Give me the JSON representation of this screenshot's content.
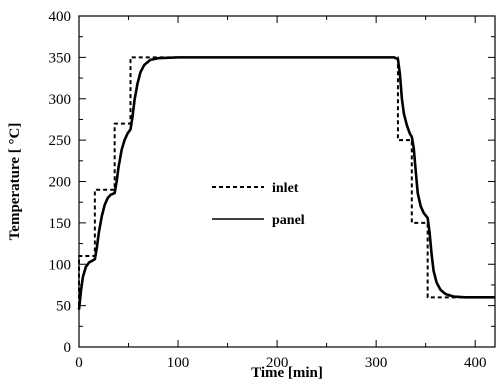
{
  "chart_data": {
    "type": "line",
    "xlabel": "Time [min]",
    "ylabel": "Temperature [   °C]",
    "xlim": [
      0,
      420
    ],
    "ylim": [
      0,
      400
    ],
    "xticks": [
      0,
      100,
      200,
      300,
      400
    ],
    "yticks": [
      0,
      50,
      100,
      150,
      200,
      250,
      300,
      350,
      400
    ],
    "grid": false,
    "legend_position": "center-left",
    "series": [
      {
        "name": "inlet",
        "style": "dashed",
        "points": [
          [
            0,
            50
          ],
          [
            0,
            110
          ],
          [
            16,
            110
          ],
          [
            16,
            190
          ],
          [
            36,
            190
          ],
          [
            36,
            270
          ],
          [
            52,
            270
          ],
          [
            52,
            350
          ],
          [
            322,
            350
          ],
          [
            322,
            250
          ],
          [
            336,
            250
          ],
          [
            336,
            150
          ],
          [
            352,
            150
          ],
          [
            352,
            60
          ],
          [
            420,
            60
          ]
        ]
      },
      {
        "name": "panel",
        "style": "solid",
        "points": [
          [
            0,
            45
          ],
          [
            2,
            68
          ],
          [
            4,
            85
          ],
          [
            7,
            97
          ],
          [
            10,
            102
          ],
          [
            13,
            104
          ],
          [
            16,
            106
          ],
          [
            18,
            120
          ],
          [
            20,
            138
          ],
          [
            23,
            158
          ],
          [
            26,
            172
          ],
          [
            29,
            180
          ],
          [
            32,
            184
          ],
          [
            36,
            186
          ],
          [
            38,
            200
          ],
          [
            40,
            218
          ],
          [
            43,
            238
          ],
          [
            46,
            250
          ],
          [
            49,
            258
          ],
          [
            52,
            263
          ],
          [
            54,
            278
          ],
          [
            56,
            298
          ],
          [
            59,
            318
          ],
          [
            62,
            332
          ],
          [
            66,
            341
          ],
          [
            72,
            347
          ],
          [
            80,
            349
          ],
          [
            100,
            350
          ],
          [
            200,
            350
          ],
          [
            318,
            350
          ],
          [
            322,
            348
          ],
          [
            324,
            330
          ],
          [
            326,
            300
          ],
          [
            328,
            282
          ],
          [
            331,
            268
          ],
          [
            334,
            258
          ],
          [
            336,
            254
          ],
          [
            338,
            240
          ],
          [
            340,
            212
          ],
          [
            342,
            186
          ],
          [
            345,
            170
          ],
          [
            348,
            162
          ],
          [
            352,
            156
          ],
          [
            354,
            138
          ],
          [
            356,
            112
          ],
          [
            358,
            92
          ],
          [
            361,
            78
          ],
          [
            365,
            69
          ],
          [
            370,
            64
          ],
          [
            378,
            61
          ],
          [
            390,
            60
          ],
          [
            420,
            60
          ]
        ]
      }
    ]
  }
}
